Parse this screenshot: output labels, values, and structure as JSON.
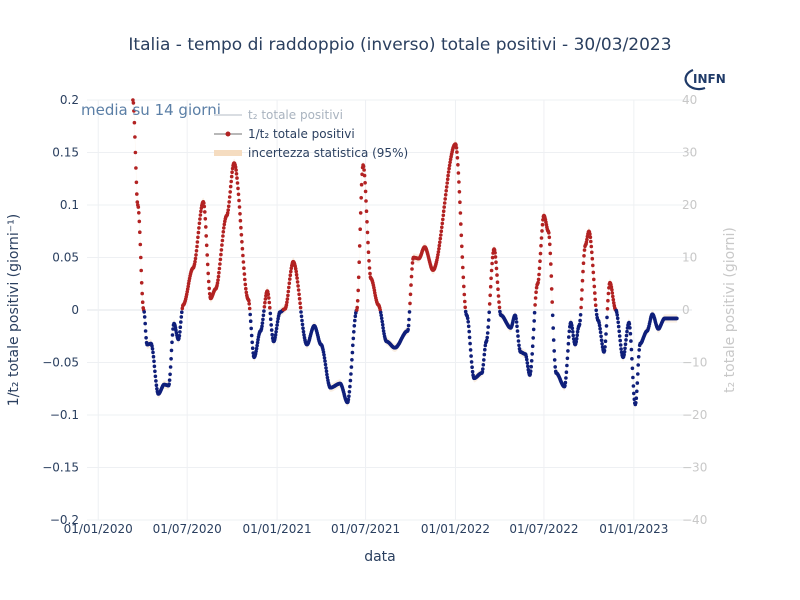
{
  "chart_data": {
    "type": "scatter",
    "title": "Italia - tempo di raddoppio (inverso) totale positivi - 30/03/2023",
    "annotation": "media su 14 giorni",
    "xlabel": "data",
    "ylabel": "1/t₂ totale positivi (giorni⁻¹)",
    "ylabel_right": "t₂ totale positivi (giorni)",
    "ylim": [
      -0.2,
      0.2
    ],
    "ylim_right": [
      -40,
      40
    ],
    "y_ticks": [
      "0.2",
      "0.15",
      "0.1",
      "0.05",
      "0",
      "−0.05",
      "−0.1",
      "−0.15",
      "−0.2"
    ],
    "y_ticks_right": [
      "40",
      "30",
      "20",
      "10",
      "0",
      "−10",
      "−20",
      "−30",
      "−40"
    ],
    "x_ticks": [
      "01/01/2020",
      "01/07/2020",
      "01/01/2021",
      "01/07/2021",
      "01/01/2022",
      "01/07/2022",
      "01/01/2023"
    ],
    "x_range": [
      "2019-12-09",
      "2023-04-30"
    ],
    "grid": true,
    "legend_position": "top-left",
    "legend": [
      {
        "label": "t₂ totale positivi",
        "style": "line",
        "color": "#d0d4d9",
        "dim": true
      },
      {
        "label": "1/t₂ totale positivi",
        "style": "line-marker",
        "color": "#b2b2b2"
      },
      {
        "label": "incertezza statistica (95%)",
        "style": "band",
        "color": "#f5dcc0"
      }
    ],
    "colors": {
      "positive": "#b22222",
      "negative": "#0f1f7a",
      "grid": "#ebedf0"
    },
    "x_start": "2020-03-12",
    "x_end": "2023-03-30",
    "keypoints": [
      [
        "2020-03-12",
        0.2
      ],
      [
        "2020-03-22",
        0.1
      ],
      [
        "2020-04-03",
        0.0
      ],
      [
        "2020-04-10",
        -0.033
      ],
      [
        "2020-04-18",
        -0.032
      ],
      [
        "2020-05-03",
        -0.08
      ],
      [
        "2020-05-15",
        -0.071
      ],
      [
        "2020-05-24",
        -0.072
      ],
      [
        "2020-06-04",
        -0.013
      ],
      [
        "2020-06-13",
        -0.028
      ],
      [
        "2020-06-23",
        0.005
      ],
      [
        "2020-07-13",
        0.04
      ],
      [
        "2020-08-03",
        0.103
      ],
      [
        "2020-08-18",
        0.011
      ],
      [
        "2020-08-28",
        0.02
      ],
      [
        "2020-09-20",
        0.09
      ],
      [
        "2020-10-05",
        0.14
      ],
      [
        "2020-11-03",
        0.01
      ],
      [
        "2020-11-15",
        -0.045
      ],
      [
        "2020-11-28",
        -0.02
      ],
      [
        "2020-12-12",
        0.018
      ],
      [
        "2020-12-25",
        -0.03
      ],
      [
        "2021-01-07",
        -0.002
      ],
      [
        "2021-01-17",
        0.001
      ],
      [
        "2021-02-03",
        0.046
      ],
      [
        "2021-03-03",
        -0.033
      ],
      [
        "2021-03-18",
        -0.015
      ],
      [
        "2021-04-01",
        -0.033
      ],
      [
        "2021-04-20",
        -0.074
      ],
      [
        "2021-05-10",
        -0.07
      ],
      [
        "2021-05-25",
        -0.088
      ],
      [
        "2021-06-13",
        0.0
      ],
      [
        "2021-06-26",
        0.138
      ],
      [
        "2021-07-12",
        0.03
      ],
      [
        "2021-07-27",
        0.005
      ],
      [
        "2021-08-13",
        -0.03
      ],
      [
        "2021-08-30",
        -0.036
      ],
      [
        "2021-09-25",
        -0.02
      ],
      [
        "2021-10-07",
        0.05
      ],
      [
        "2021-10-18",
        0.049
      ],
      [
        "2021-10-30",
        0.06
      ],
      [
        "2021-11-16",
        0.038
      ],
      [
        "2022-01-01",
        0.158
      ],
      [
        "2022-01-24",
        -0.005
      ],
      [
        "2022-02-08",
        -0.065
      ],
      [
        "2022-02-24",
        -0.06
      ],
      [
        "2022-03-05",
        -0.03
      ],
      [
        "2022-03-21",
        0.058
      ],
      [
        "2022-04-04",
        -0.005
      ],
      [
        "2022-04-24",
        -0.017
      ],
      [
        "2022-05-03",
        -0.005
      ],
      [
        "2022-05-14",
        -0.04
      ],
      [
        "2022-05-24",
        -0.042
      ],
      [
        "2022-06-02",
        -0.062
      ],
      [
        "2022-06-18",
        0.025
      ],
      [
        "2022-07-01",
        0.09
      ],
      [
        "2022-07-10",
        0.075
      ],
      [
        "2022-07-26",
        -0.06
      ],
      [
        "2022-08-12",
        -0.073
      ],
      [
        "2022-08-25",
        -0.012
      ],
      [
        "2022-09-03",
        -0.033
      ],
      [
        "2022-09-11",
        -0.015
      ],
      [
        "2022-09-24",
        0.062
      ],
      [
        "2022-10-01",
        0.075
      ],
      [
        "2022-10-20",
        -0.01
      ],
      [
        "2022-11-01",
        -0.04
      ],
      [
        "2022-11-13",
        0.026
      ],
      [
        "2022-11-25",
        0.0
      ],
      [
        "2022-12-10",
        -0.045
      ],
      [
        "2022-12-22",
        -0.012
      ],
      [
        "2023-01-04",
        -0.09
      ],
      [
        "2023-01-14",
        -0.032
      ],
      [
        "2023-01-28",
        -0.02
      ],
      [
        "2023-02-08",
        -0.004
      ],
      [
        "2023-02-20",
        -0.018
      ],
      [
        "2023-03-05",
        -0.008
      ],
      [
        "2023-03-30",
        -0.008
      ]
    ]
  }
}
